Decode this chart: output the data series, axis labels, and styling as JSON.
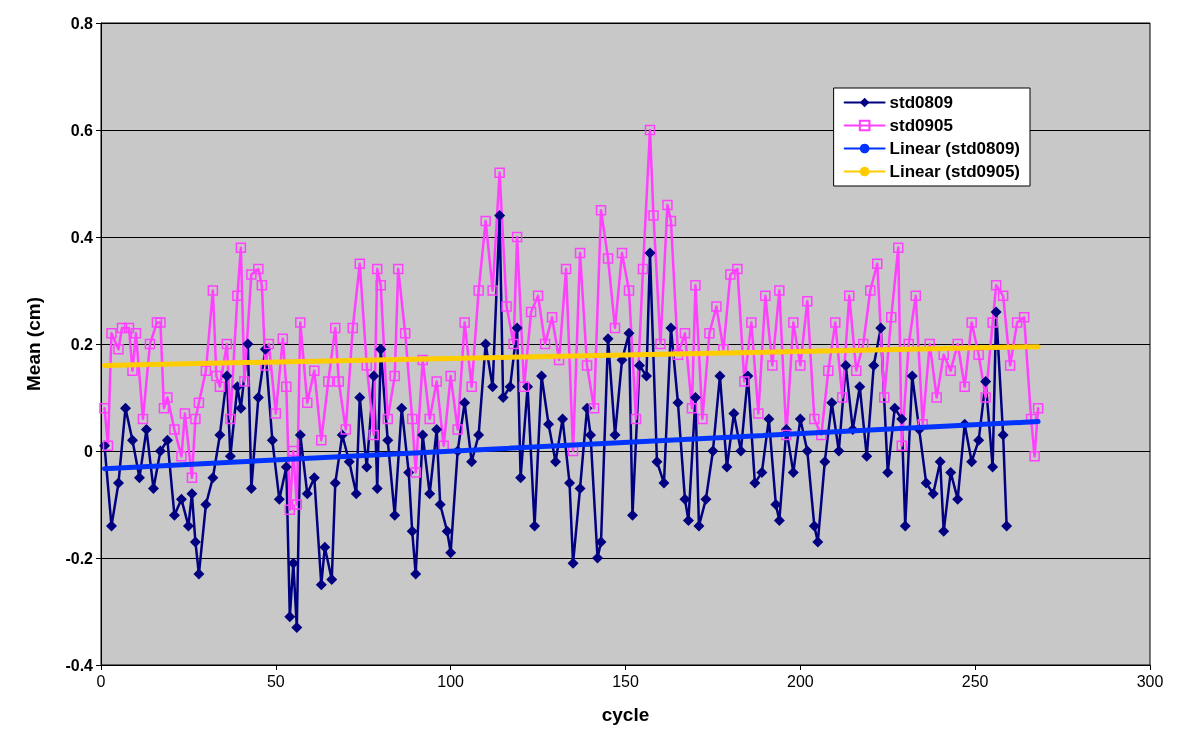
{
  "chart_data": {
    "type": "line",
    "xlabel": "cycle",
    "ylabel": "Mean (cm)",
    "xlim": [
      0,
      300
    ],
    "xticks": [
      0,
      50,
      100,
      150,
      200,
      250,
      300
    ],
    "ylim": [
      -0.4,
      0.8
    ],
    "yticks": [
      -0.4,
      -0.2,
      0,
      0.2,
      0.4,
      0.6,
      0.8
    ],
    "grid": "y",
    "legend": "top right",
    "series": [
      {
        "name": "std0809",
        "color": "#000080",
        "marker": "diamond",
        "x": [
          1,
          3,
          5,
          7,
          9,
          11,
          13,
          15,
          17,
          19,
          21,
          23,
          25,
          26,
          27,
          28,
          30,
          32,
          34,
          36,
          37,
          39,
          40,
          42,
          43,
          45,
          47,
          49,
          51,
          53,
          54,
          55,
          56,
          57,
          59,
          61,
          63,
          64,
          66,
          67,
          69,
          71,
          73,
          74,
          76,
          78,
          79,
          80,
          82,
          84,
          86,
          88,
          89,
          90,
          92,
          94,
          96,
          97,
          99,
          100,
          102,
          104,
          106,
          108,
          110,
          112,
          114,
          115,
          117,
          119,
          120,
          122,
          124,
          126,
          128,
          130,
          132,
          134,
          135,
          137,
          139,
          140,
          142,
          143,
          145,
          147,
          149,
          151,
          152,
          154,
          156,
          157,
          159,
          161,
          163,
          165,
          167,
          168,
          170,
          171,
          173,
          175,
          177,
          179,
          181,
          183,
          185,
          187,
          189,
          191,
          193,
          194,
          196,
          198,
          200,
          202,
          204,
          205,
          207,
          209,
          211,
          213,
          215,
          217,
          219,
          221,
          223,
          225,
          227,
          229,
          230,
          232,
          234,
          236,
          238,
          240,
          241,
          243,
          245,
          247,
          249,
          251,
          253,
          255,
          256,
          258,
          259
        ],
        "values": [
          0.01,
          -0.14,
          -0.06,
          0.08,
          0.02,
          -0.05,
          0.04,
          -0.07,
          0,
          0.02,
          -0.12,
          -0.09,
          -0.14,
          -0.08,
          -0.17,
          -0.23,
          -0.1,
          -0.05,
          0.03,
          0.14,
          -0.01,
          0.12,
          0.08,
          0.2,
          -0.07,
          0.1,
          0.19,
          0.02,
          -0.09,
          -0.03,
          -0.31,
          -0.21,
          -0.33,
          0.03,
          -0.08,
          -0.05,
          -0.25,
          -0.18,
          -0.24,
          -0.06,
          0.03,
          -0.02,
          -0.08,
          0.1,
          -0.03,
          0.14,
          -0.07,
          0.19,
          0.02,
          -0.12,
          0.08,
          -0.04,
          -0.15,
          -0.23,
          0.03,
          -0.08,
          0.04,
          -0.1,
          -0.15,
          -0.19,
          0,
          0.09,
          -0.02,
          0.03,
          0.2,
          0.12,
          0.44,
          0.1,
          0.12,
          0.23,
          -0.05,
          0.12,
          -0.14,
          0.14,
          0.05,
          -0.02,
          0.06,
          -0.06,
          -0.21,
          -0.07,
          0.08,
          0.03,
          -0.2,
          -0.17,
          0.21,
          0.03,
          0.17,
          0.22,
          -0.12,
          0.16,
          0.14,
          0.37,
          -0.02,
          -0.06,
          0.23,
          0.09,
          -0.09,
          -0.13,
          0.1,
          -0.14,
          -0.09,
          0,
          0.14,
          -0.03,
          0.07,
          0,
          0.14,
          -0.06,
          -0.04,
          0.06,
          -0.1,
          -0.13,
          0.04,
          -0.04,
          0.06,
          0,
          -0.14,
          -0.17,
          -0.02,
          0.09,
          0,
          0.16,
          0.04,
          0.12,
          -0.01,
          0.16,
          0.23,
          -0.04,
          0.08,
          0.06,
          -0.14,
          0.14,
          0.04,
          -0.06,
          -0.08,
          -0.02,
          -0.15,
          -0.04,
          -0.09,
          0.05,
          -0.02,
          0.02,
          0.13,
          -0.03,
          0.26,
          0.03,
          -0.14
        ]
      },
      {
        "name": "std0905",
        "color": "#ff40ff",
        "marker": "square",
        "x": [
          1,
          2,
          3,
          5,
          6,
          8,
          9,
          10,
          12,
          14,
          16,
          17,
          18,
          19,
          21,
          23,
          24,
          26,
          27,
          28,
          30,
          32,
          33,
          34,
          36,
          37,
          39,
          40,
          41,
          43,
          45,
          46,
          47,
          48,
          50,
          52,
          53,
          54,
          55,
          56,
          57,
          59,
          61,
          63,
          65,
          67,
          68,
          70,
          72,
          74,
          76,
          78,
          79,
          80,
          82,
          84,
          85,
          87,
          89,
          90,
          92,
          94,
          96,
          98,
          100,
          102,
          104,
          106,
          108,
          110,
          112,
          114,
          116,
          118,
          119,
          121,
          123,
          125,
          127,
          129,
          131,
          133,
          135,
          137,
          139,
          141,
          143,
          145,
          147,
          149,
          151,
          153,
          155,
          157,
          158,
          160,
          162,
          163,
          165,
          167,
          169,
          170,
          172,
          174,
          176,
          178,
          180,
          182,
          184,
          186,
          188,
          190,
          192,
          194,
          196,
          198,
          200,
          202,
          204,
          206,
          208,
          210,
          212,
          214,
          216,
          218,
          220,
          222,
          224,
          226,
          228,
          229,
          231,
          233,
          235,
          237,
          239,
          241,
          243,
          245,
          247,
          249,
          251,
          253,
          255,
          256,
          258,
          260,
          262,
          264,
          266,
          267,
          268
        ],
        "values": [
          0.08,
          0.01,
          0.22,
          0.19,
          0.23,
          0.23,
          0.15,
          0.22,
          0.06,
          0.2,
          0.24,
          0.24,
          0.08,
          0.1,
          0.04,
          -0.01,
          0.07,
          -0.05,
          0.06,
          0.09,
          0.15,
          0.3,
          0.14,
          0.12,
          0.2,
          0.06,
          0.29,
          0.38,
          0.13,
          0.33,
          0.34,
          0.31,
          0.16,
          0.2,
          0.07,
          0.21,
          0.12,
          -0.11,
          0,
          -0.1,
          0.24,
          0.09,
          0.15,
          0.02,
          0.13,
          0.23,
          0.13,
          0.04,
          0.23,
          0.35,
          0.16,
          0.03,
          0.34,
          0.31,
          0.06,
          0.14,
          0.34,
          0.22,
          0.06,
          -0.04,
          0.17,
          0.06,
          0.13,
          0.01,
          0.14,
          0.04,
          0.24,
          0.12,
          0.3,
          0.43,
          0.3,
          0.52,
          0.27,
          0.2,
          0.4,
          0.12,
          0.26,
          0.29,
          0.2,
          0.25,
          0.17,
          0.34,
          0,
          0.37,
          0.16,
          0.08,
          0.45,
          0.36,
          0.23,
          0.37,
          0.3,
          0.06,
          0.34,
          0.6,
          0.44,
          0.2,
          0.46,
          0.43,
          0.18,
          0.22,
          0.08,
          0.31,
          0.06,
          0.22,
          0.27,
          0.19,
          0.33,
          0.34,
          0.13,
          0.24,
          0.07,
          0.29,
          0.16,
          0.3,
          0.03,
          0.24,
          0.16,
          0.28,
          0.06,
          0.03,
          0.15,
          0.24,
          0.1,
          0.29,
          0.15,
          0.2,
          0.3,
          0.35,
          0.1,
          0.25,
          0.38,
          0.01,
          0.2,
          0.29,
          0.05,
          0.2,
          0.1,
          0.18,
          0.15,
          0.2,
          0.12,
          0.24,
          0.18,
          0.1,
          0.24,
          0.31,
          0.29,
          0.16,
          0.24,
          0.25,
          0.06,
          -0.01,
          0.08
        ]
      },
      {
        "name": "Linear (std0809)",
        "color": "#0033ff",
        "marker": "none",
        "x": [
          1,
          268
        ],
        "values": [
          -0.033,
          0.055
        ]
      },
      {
        "name": "Linear (std0905)",
        "color": "#ffcc00",
        "marker": "none",
        "x": [
          1,
          268
        ],
        "values": [
          0.16,
          0.195
        ]
      }
    ]
  }
}
